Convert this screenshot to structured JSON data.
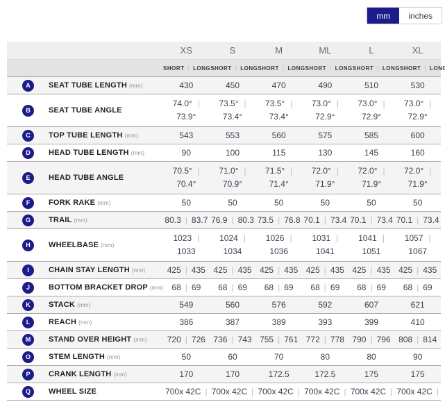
{
  "toggle": {
    "mm_label": "mm",
    "inches_label": "inches",
    "selected": "mm"
  },
  "colors": {
    "accent_navy": "#1b1b8a",
    "stripe_gray": "#f5f4f4",
    "header_gray": "#e4e3e3"
  },
  "table": {
    "sizes": [
      "XS",
      "S",
      "M",
      "ML",
      "L",
      "XL"
    ],
    "fit_short_label": "SHORT",
    "fit_long_label": "LONG",
    "rows": [
      {
        "letter": "A",
        "label": "SEAT TUBE LENGTH",
        "unit": "(mm)",
        "type": "single",
        "values": [
          "430",
          "450",
          "470",
          "490",
          "510",
          "530"
        ]
      },
      {
        "letter": "B",
        "label": "SEAT TUBE ANGLE",
        "unit": "",
        "type": "stacked",
        "values": [
          [
            "74.0°",
            "73.9°"
          ],
          [
            "73.5°",
            "73.4°"
          ],
          [
            "73.5°",
            "73.4°"
          ],
          [
            "73.0°",
            "72.9°"
          ],
          [
            "73.0°",
            "72.9°"
          ],
          [
            "73.0°",
            "72.9°"
          ]
        ]
      },
      {
        "letter": "C",
        "label": "TOP TUBE LENGTH",
        "unit": "(mm)",
        "type": "single",
        "values": [
          "543",
          "553",
          "560",
          "575",
          "585",
          "600"
        ]
      },
      {
        "letter": "D",
        "label": "HEAD TUBE LENGTH",
        "unit": "(mm)",
        "type": "single",
        "values": [
          "90",
          "100",
          "115",
          "130",
          "145",
          "160"
        ]
      },
      {
        "letter": "E",
        "label": "HEAD TUBE ANGLE",
        "unit": "",
        "type": "stacked",
        "values": [
          [
            "70.5°",
            "70.4°"
          ],
          [
            "71.0°",
            "70.9°"
          ],
          [
            "71.5°",
            "71.4°"
          ],
          [
            "72.0°",
            "71.9°"
          ],
          [
            "72.0°",
            "71.9°"
          ],
          [
            "72.0°",
            "71.9°"
          ]
        ]
      },
      {
        "letter": "F",
        "label": "FORK RAKE",
        "unit": "(mm)",
        "type": "single",
        "values": [
          "50",
          "50",
          "50",
          "50",
          "50",
          "50"
        ]
      },
      {
        "letter": "G",
        "label": "TRAIL",
        "unit": "(mm)",
        "type": "inline",
        "values": [
          [
            "80.3",
            "83.7"
          ],
          [
            "76.9",
            "80.3"
          ],
          [
            "73.5",
            "76.8"
          ],
          [
            "70.1",
            "73.4"
          ],
          [
            "70.1",
            "73.4"
          ],
          [
            "70.1",
            "73.4"
          ]
        ]
      },
      {
        "letter": "H",
        "label": "WHEELBASE",
        "unit": "(mm)",
        "type": "stacked",
        "values": [
          [
            "1023",
            "1033"
          ],
          [
            "1024",
            "1034"
          ],
          [
            "1026",
            "1036"
          ],
          [
            "1031",
            "1041"
          ],
          [
            "1041",
            "1051"
          ],
          [
            "1057",
            "1067"
          ]
        ]
      },
      {
        "letter": "I",
        "label": "CHAIN STAY LENGTH",
        "unit": "(mm)",
        "type": "inline",
        "values": [
          [
            "425",
            "435"
          ],
          [
            "425",
            "435"
          ],
          [
            "425",
            "435"
          ],
          [
            "425",
            "435"
          ],
          [
            "425",
            "435"
          ],
          [
            "425",
            "435"
          ]
        ]
      },
      {
        "letter": "J",
        "label": "BOTTOM BRACKET DROP",
        "unit": "(mm)",
        "type": "inline",
        "values": [
          [
            "68",
            "69"
          ],
          [
            "68",
            "69"
          ],
          [
            "68",
            "69"
          ],
          [
            "68",
            "69"
          ],
          [
            "68",
            "69"
          ],
          [
            "68",
            "69"
          ]
        ]
      },
      {
        "letter": "K",
        "label": "STACK",
        "unit": "(mm)",
        "type": "single",
        "values": [
          "549",
          "560",
          "576",
          "592",
          "607",
          "621"
        ]
      },
      {
        "letter": "L",
        "label": "REACH",
        "unit": "(mm)",
        "type": "single",
        "values": [
          "386",
          "387",
          "389",
          "393",
          "399",
          "410"
        ]
      },
      {
        "letter": "M",
        "label": "STAND OVER HEIGHT",
        "unit": "(mm)",
        "type": "inline",
        "values": [
          [
            "720",
            "726"
          ],
          [
            "736",
            "743"
          ],
          [
            "755",
            "761"
          ],
          [
            "772",
            "778"
          ],
          [
            "790",
            "796"
          ],
          [
            "808",
            "814"
          ]
        ]
      },
      {
        "letter": "O",
        "label": "STEM LENGTH",
        "unit": "(mm)",
        "type": "single",
        "values": [
          "50",
          "60",
          "70",
          "80",
          "80",
          "90"
        ]
      },
      {
        "letter": "P",
        "label": "CRANK LENGTH",
        "unit": "(mm)",
        "type": "single",
        "values": [
          "170",
          "170",
          "172.5",
          "172.5",
          "175",
          "175"
        ]
      },
      {
        "letter": "Q",
        "label": "WHEEL SIZE",
        "unit": "",
        "type": "trailing",
        "values": [
          "700x 42C",
          "700x 42C",
          "700x 42C",
          "700x 42C",
          "700x 42C",
          "700x 42C"
        ]
      }
    ]
  }
}
